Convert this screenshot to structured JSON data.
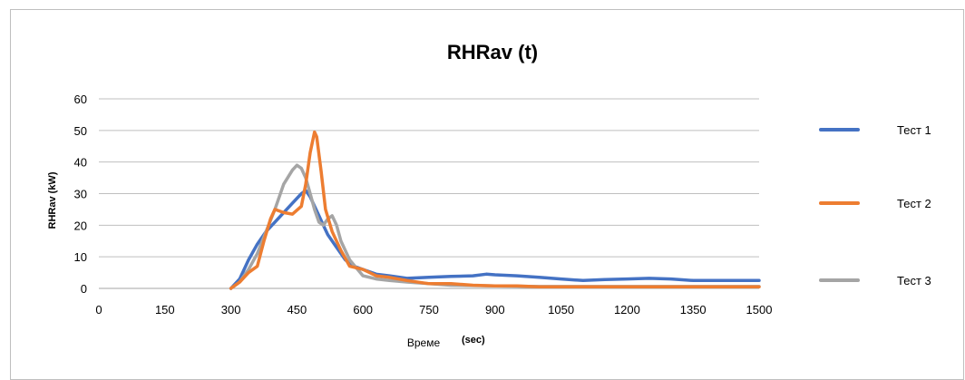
{
  "chart_data": {
    "type": "line",
    "title": "RHRav (t)",
    "xlabel": "Време",
    "xlabel_unit": "(sec)",
    "ylabel": "RHRav (kW)",
    "xlim": [
      0,
      1500
    ],
    "ylim": [
      0,
      60
    ],
    "x_ticks": [
      0,
      150,
      300,
      450,
      600,
      750,
      900,
      1050,
      1200,
      1350,
      1500
    ],
    "y_ticks": [
      0,
      10,
      20,
      30,
      40,
      50,
      60
    ],
    "grid": "horizontal",
    "legend_position": "right",
    "series": [
      {
        "name": "Тест  1",
        "color": "#4472c4",
        "points": [
          [
            300,
            0
          ],
          [
            320,
            3
          ],
          [
            340,
            9
          ],
          [
            360,
            14
          ],
          [
            380,
            18
          ],
          [
            400,
            21
          ],
          [
            420,
            24
          ],
          [
            440,
            27
          ],
          [
            460,
            30
          ],
          [
            470,
            31
          ],
          [
            480,
            29
          ],
          [
            490,
            26
          ],
          [
            500,
            23
          ],
          [
            510,
            20
          ],
          [
            520,
            17
          ],
          [
            540,
            13
          ],
          [
            560,
            9
          ],
          [
            580,
            7
          ],
          [
            600,
            6
          ],
          [
            630,
            4.5
          ],
          [
            660,
            4
          ],
          [
            700,
            3.2
          ],
          [
            750,
            3.5
          ],
          [
            800,
            3.8
          ],
          [
            850,
            4
          ],
          [
            880,
            4.5
          ],
          [
            900,
            4.3
          ],
          [
            950,
            4
          ],
          [
            1000,
            3.5
          ],
          [
            1050,
            3
          ],
          [
            1100,
            2.5
          ],
          [
            1150,
            2.8
          ],
          [
            1200,
            3
          ],
          [
            1250,
            3.2
          ],
          [
            1300,
            3
          ],
          [
            1350,
            2.5
          ],
          [
            1400,
            2.5
          ],
          [
            1450,
            2.5
          ],
          [
            1500,
            2.5
          ]
        ]
      },
      {
        "name": "Тест  2",
        "color": "#ed7d31",
        "points": [
          [
            300,
            0
          ],
          [
            320,
            2
          ],
          [
            340,
            5
          ],
          [
            360,
            7
          ],
          [
            375,
            15
          ],
          [
            390,
            22
          ],
          [
            400,
            25
          ],
          [
            420,
            24
          ],
          [
            440,
            23.5
          ],
          [
            460,
            26
          ],
          [
            470,
            33
          ],
          [
            480,
            43
          ],
          [
            490,
            49.5
          ],
          [
            495,
            48
          ],
          [
            505,
            37
          ],
          [
            515,
            25
          ],
          [
            530,
            18
          ],
          [
            550,
            12
          ],
          [
            570,
            7
          ],
          [
            600,
            6
          ],
          [
            630,
            4
          ],
          [
            660,
            3.5
          ],
          [
            700,
            2.5
          ],
          [
            750,
            1.5
          ],
          [
            800,
            1.5
          ],
          [
            850,
            1
          ],
          [
            900,
            0.8
          ],
          [
            950,
            0.8
          ],
          [
            1000,
            0.5
          ],
          [
            1050,
            0.5
          ],
          [
            1100,
            0.5
          ],
          [
            1200,
            0.5
          ],
          [
            1300,
            0.5
          ],
          [
            1400,
            0.5
          ],
          [
            1500,
            0.5
          ]
        ]
      },
      {
        "name": "Тест  3",
        "color": "#a5a5a5",
        "points": [
          [
            300,
            0
          ],
          [
            320,
            2
          ],
          [
            340,
            6
          ],
          [
            360,
            11
          ],
          [
            380,
            18
          ],
          [
            400,
            25
          ],
          [
            420,
            33
          ],
          [
            440,
            37.5
          ],
          [
            450,
            39
          ],
          [
            460,
            38
          ],
          [
            470,
            35
          ],
          [
            480,
            30
          ],
          [
            490,
            25
          ],
          [
            500,
            21
          ],
          [
            510,
            20
          ],
          [
            520,
            22
          ],
          [
            530,
            23
          ],
          [
            540,
            20
          ],
          [
            550,
            15
          ],
          [
            570,
            9
          ],
          [
            600,
            4
          ],
          [
            630,
            3
          ],
          [
            660,
            2.5
          ],
          [
            700,
            2
          ],
          [
            750,
            1.5
          ],
          [
            800,
            1
          ],
          [
            900,
            0.8
          ],
          [
            1000,
            0.6
          ],
          [
            1100,
            0.6
          ],
          [
            1200,
            0.6
          ],
          [
            1300,
            0.6
          ],
          [
            1400,
            0.6
          ],
          [
            1500,
            0.6
          ]
        ]
      }
    ]
  }
}
